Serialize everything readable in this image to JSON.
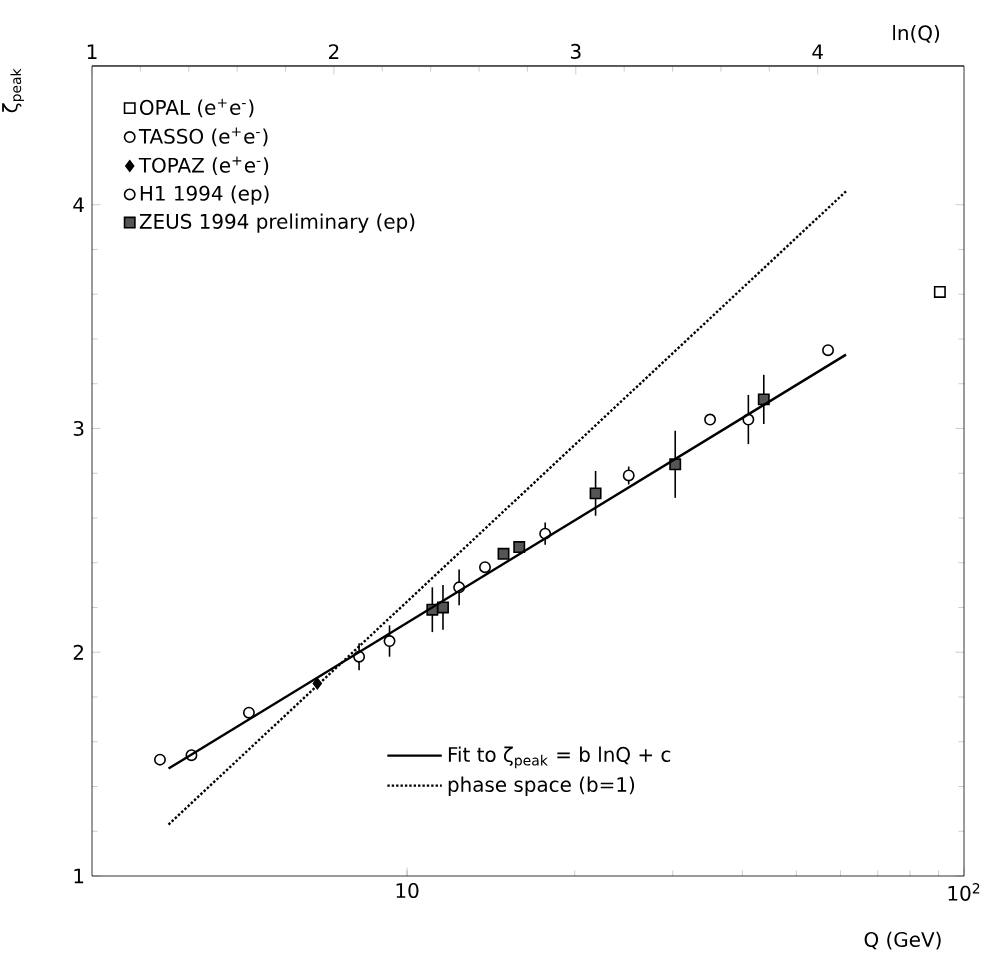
{
  "chart_data": {
    "type": "scatter",
    "xlabel": "Q (GeV)",
    "ylabel": "ζ$_{peak}$",
    "x2label": "ln(Q)",
    "log": "x",
    "xlim": [
      2.718,
      100
    ],
    "ylim": [
      1,
      4.62
    ],
    "xticks": [
      10,
      {
        "value": 100,
        "label": "10$^{2}$"
      }
    ],
    "yticks": [
      1,
      2,
      3,
      4
    ],
    "x2lim": [
      1,
      4.605
    ],
    "x2ticks": [
      1,
      2,
      3,
      4
    ],
    "legend": "top left",
    "series": [
      {
        "name": "OPAL (e$^{+}$e$^{-}$)",
        "color": "#ffffff",
        "marker": "square",
        "x": [
          90.5
        ],
        "values": [
          3.61
        ]
      },
      {
        "name": "TASSO (e$^{+}$e$^{-}$)",
        "color": "#ffffff",
        "marker": "circle",
        "x": [
          13.8,
          35
        ],
        "values": [
          2.38,
          3.04
        ]
      },
      {
        "name": "TOPAZ (e$^{+}$e$^{-}$)",
        "color": "#000000",
        "marker": "diamond",
        "x": [
          6.9
        ],
        "values": [
          1.86
        ]
      },
      {
        "name": "H1 1994  (ep)",
        "color": "#ffffff",
        "marker": "circle",
        "x": [
          3.6,
          4.1,
          5.2,
          8.2,
          9.3,
          12.4,
          17.7,
          25,
          41,
          57
        ],
        "values": [
          1.52,
          1.54,
          1.73,
          1.98,
          2.05,
          2.29,
          2.53,
          2.79,
          3.04,
          3.35
        ],
        "errors": [
          null,
          null,
          null,
          0.06,
          0.07,
          0.08,
          0.05,
          0.04,
          0.11,
          null
        ]
      },
      {
        "name": "ZEUS 1994 preliminary (ep)",
        "color": "#555555",
        "marker": "square",
        "x": [
          11.1,
          11.6,
          14.9,
          15.9,
          21.8,
          30.3,
          43.7
        ],
        "values": [
          2.19,
          2.2,
          2.44,
          2.47,
          2.71,
          2.84,
          3.13
        ],
        "errors": [
          0.1,
          0.1,
          null,
          null,
          0.1,
          0.15,
          0.11
        ]
      },
      {
        "name": "Fit to ζ$_{peak}$ = b lnQ + c",
        "type": "line",
        "color": "#000000",
        "line_style": "solid",
        "x": [
          3.73,
          61.4
        ],
        "values": [
          1.48,
          3.33
        ]
      },
      {
        "name": "phase space (b=1)",
        "type": "line",
        "color": "#000000",
        "line_style": "dotted",
        "x": [
          3.73,
          61.4
        ],
        "values": [
          1.23,
          4.06
        ]
      }
    ]
  }
}
